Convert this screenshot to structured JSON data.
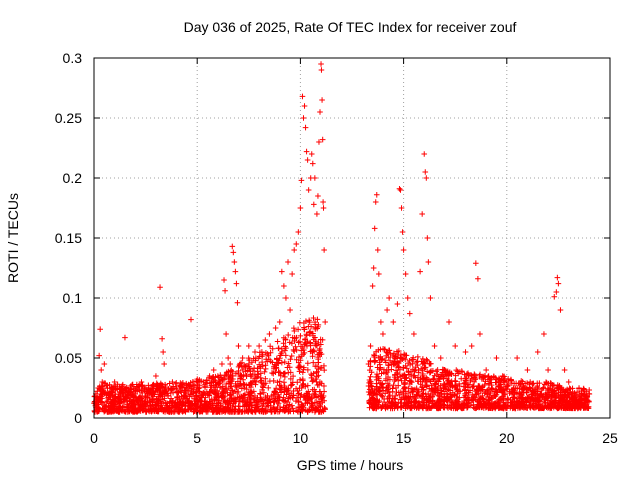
{
  "chart_data": {
    "type": "scatter",
    "title": "Day 036 of 2025, Rate Of TEC Index for receiver zouf",
    "xlabel": "GPS time / hours",
    "ylabel": "ROTI / TECUs",
    "xlim": [
      0,
      25
    ],
    "ylim": [
      0,
      0.3
    ],
    "x_ticks": [
      "0",
      "5",
      "10",
      "15",
      "20",
      "25"
    ],
    "y_ticks": [
      "0",
      "0.05",
      "0.1",
      "0.15",
      "0.2",
      "0.25",
      "0.3"
    ],
    "grid": true,
    "marker": "+",
    "color": "#ff0000",
    "series": [
      {
        "name": "ROTI",
        "points": [
          [
            0.1,
            0.012
          ],
          [
            0.2,
            0.025
          ],
          [
            0.25,
            0.052
          ],
          [
            0.3,
            0.074
          ],
          [
            0.35,
            0.04
          ],
          [
            0.4,
            0.03
          ],
          [
            0.5,
            0.045
          ],
          [
            0.6,
            0.02
          ],
          [
            0.8,
            0.018
          ],
          [
            1.0,
            0.03
          ],
          [
            1.2,
            0.02
          ],
          [
            1.5,
            0.067
          ],
          [
            1.6,
            0.025
          ],
          [
            1.8,
            0.022
          ],
          [
            2.0,
            0.02
          ],
          [
            2.3,
            0.03
          ],
          [
            2.5,
            0.018
          ],
          [
            2.8,
            0.025
          ],
          [
            3.0,
            0.035
          ],
          [
            3.2,
            0.109
          ],
          [
            3.3,
            0.066
          ],
          [
            3.35,
            0.055
          ],
          [
            3.4,
            0.045
          ],
          [
            3.5,
            0.02
          ],
          [
            3.8,
            0.03
          ],
          [
            4.0,
            0.025
          ],
          [
            4.3,
            0.028
          ],
          [
            4.7,
            0.082
          ],
          [
            4.8,
            0.03
          ],
          [
            5.0,
            0.025
          ],
          [
            5.3,
            0.03
          ],
          [
            5.6,
            0.035
          ],
          [
            5.8,
            0.04
          ],
          [
            6.0,
            0.035
          ],
          [
            6.2,
            0.045
          ],
          [
            6.3,
            0.115
          ],
          [
            6.35,
            0.106
          ],
          [
            6.4,
            0.07
          ],
          [
            6.5,
            0.05
          ],
          [
            6.6,
            0.045
          ],
          [
            6.7,
            0.143
          ],
          [
            6.75,
            0.138
          ],
          [
            6.8,
            0.13
          ],
          [
            6.85,
            0.122
          ],
          [
            6.9,
            0.112
          ],
          [
            6.95,
            0.096
          ],
          [
            7.0,
            0.06
          ],
          [
            7.2,
            0.05
          ],
          [
            7.5,
            0.06
          ],
          [
            7.8,
            0.055
          ],
          [
            8.0,
            0.06
          ],
          [
            8.3,
            0.065
          ],
          [
            8.5,
            0.07
          ],
          [
            8.8,
            0.075
          ],
          [
            9.0,
            0.08
          ],
          [
            9.1,
            0.122
          ],
          [
            9.2,
            0.11
          ],
          [
            9.3,
            0.1
          ],
          [
            9.4,
            0.13
          ],
          [
            9.5,
            0.09
          ],
          [
            9.6,
            0.12
          ],
          [
            9.7,
            0.14
          ],
          [
            9.8,
            0.145
          ],
          [
            9.9,
            0.155
          ],
          [
            10.0,
            0.175
          ],
          [
            10.05,
            0.198
          ],
          [
            10.1,
            0.268
          ],
          [
            10.15,
            0.25
          ],
          [
            10.2,
            0.26
          ],
          [
            10.25,
            0.242
          ],
          [
            10.3,
            0.222
          ],
          [
            10.35,
            0.215
          ],
          [
            10.4,
            0.19
          ],
          [
            10.5,
            0.2
          ],
          [
            10.55,
            0.22
          ],
          [
            10.6,
            0.212
          ],
          [
            10.65,
            0.178
          ],
          [
            10.7,
            0.2
          ],
          [
            10.8,
            0.17
          ],
          [
            10.85,
            0.185
          ],
          [
            10.9,
            0.23
          ],
          [
            10.95,
            0.255
          ],
          [
            11.0,
            0.295
          ],
          [
            11.02,
            0.29
          ],
          [
            11.05,
            0.265
          ],
          [
            11.08,
            0.232
          ],
          [
            11.1,
            0.18
          ],
          [
            11.12,
            0.175
          ],
          [
            11.15,
            0.14
          ],
          [
            11.2,
            0.08
          ],
          [
            13.3,
            0.045
          ],
          [
            13.4,
            0.06
          ],
          [
            13.5,
            0.11
          ],
          [
            13.55,
            0.125
          ],
          [
            13.6,
            0.158
          ],
          [
            13.65,
            0.18
          ],
          [
            13.7,
            0.186
          ],
          [
            13.75,
            0.14
          ],
          [
            13.8,
            0.12
          ],
          [
            13.9,
            0.08
          ],
          [
            14.0,
            0.07
          ],
          [
            14.2,
            0.09
          ],
          [
            14.3,
            0.1
          ],
          [
            14.5,
            0.08
          ],
          [
            14.7,
            0.095
          ],
          [
            14.8,
            0.191
          ],
          [
            14.85,
            0.19
          ],
          [
            14.9,
            0.175
          ],
          [
            14.95,
            0.155
          ],
          [
            15.0,
            0.14
          ],
          [
            15.1,
            0.12
          ],
          [
            15.2,
            0.1
          ],
          [
            15.3,
            0.087
          ],
          [
            15.5,
            0.07
          ],
          [
            15.8,
            0.122
          ],
          [
            15.9,
            0.17
          ],
          [
            16.0,
            0.22
          ],
          [
            16.05,
            0.205
          ],
          [
            16.1,
            0.2
          ],
          [
            16.15,
            0.15
          ],
          [
            16.2,
            0.13
          ],
          [
            16.3,
            0.1
          ],
          [
            16.5,
            0.06
          ],
          [
            16.8,
            0.05
          ],
          [
            17.0,
            0.04
          ],
          [
            17.2,
            0.08
          ],
          [
            17.5,
            0.06
          ],
          [
            18.0,
            0.055
          ],
          [
            18.3,
            0.06
          ],
          [
            18.5,
            0.129
          ],
          [
            18.6,
            0.116
          ],
          [
            18.7,
            0.07
          ],
          [
            19.0,
            0.04
          ],
          [
            19.5,
            0.05
          ],
          [
            19.8,
            0.035
          ],
          [
            20.0,
            0.03
          ],
          [
            20.5,
            0.05
          ],
          [
            21.0,
            0.04
          ],
          [
            21.5,
            0.055
          ],
          [
            21.8,
            0.07
          ],
          [
            22.0,
            0.04
          ],
          [
            22.3,
            0.101
          ],
          [
            22.4,
            0.105
          ],
          [
            22.45,
            0.117
          ],
          [
            22.5,
            0.112
          ],
          [
            22.6,
            0.09
          ],
          [
            22.8,
            0.04
          ],
          [
            23.0,
            0.03
          ],
          [
            23.5,
            0.025
          ],
          [
            24.0,
            0.02
          ]
        ]
      }
    ],
    "dense_bands": [
      {
        "x": [
          0.0,
          11.2
        ],
        "y_min": 0.005,
        "y_max_profile": [
          [
            0,
            0.03
          ],
          [
            2,
            0.028
          ],
          [
            4,
            0.03
          ],
          [
            6,
            0.035
          ],
          [
            7,
            0.045
          ],
          [
            8,
            0.055
          ],
          [
            9,
            0.065
          ],
          [
            10,
            0.08
          ],
          [
            10.5,
            0.09
          ],
          [
            11,
            0.08
          ],
          [
            11.2,
            0.05
          ]
        ]
      },
      {
        "x": [
          13.3,
          24.0
        ],
        "y_min": 0.008,
        "y_max_profile": [
          [
            13.3,
            0.05
          ],
          [
            14,
            0.06
          ],
          [
            15,
            0.055
          ],
          [
            16,
            0.05
          ],
          [
            17,
            0.04
          ],
          [
            18,
            0.04
          ],
          [
            19,
            0.035
          ],
          [
            20,
            0.035
          ],
          [
            21,
            0.03
          ],
          [
            22,
            0.03
          ],
          [
            23,
            0.025
          ],
          [
            24,
            0.025
          ]
        ]
      }
    ]
  }
}
